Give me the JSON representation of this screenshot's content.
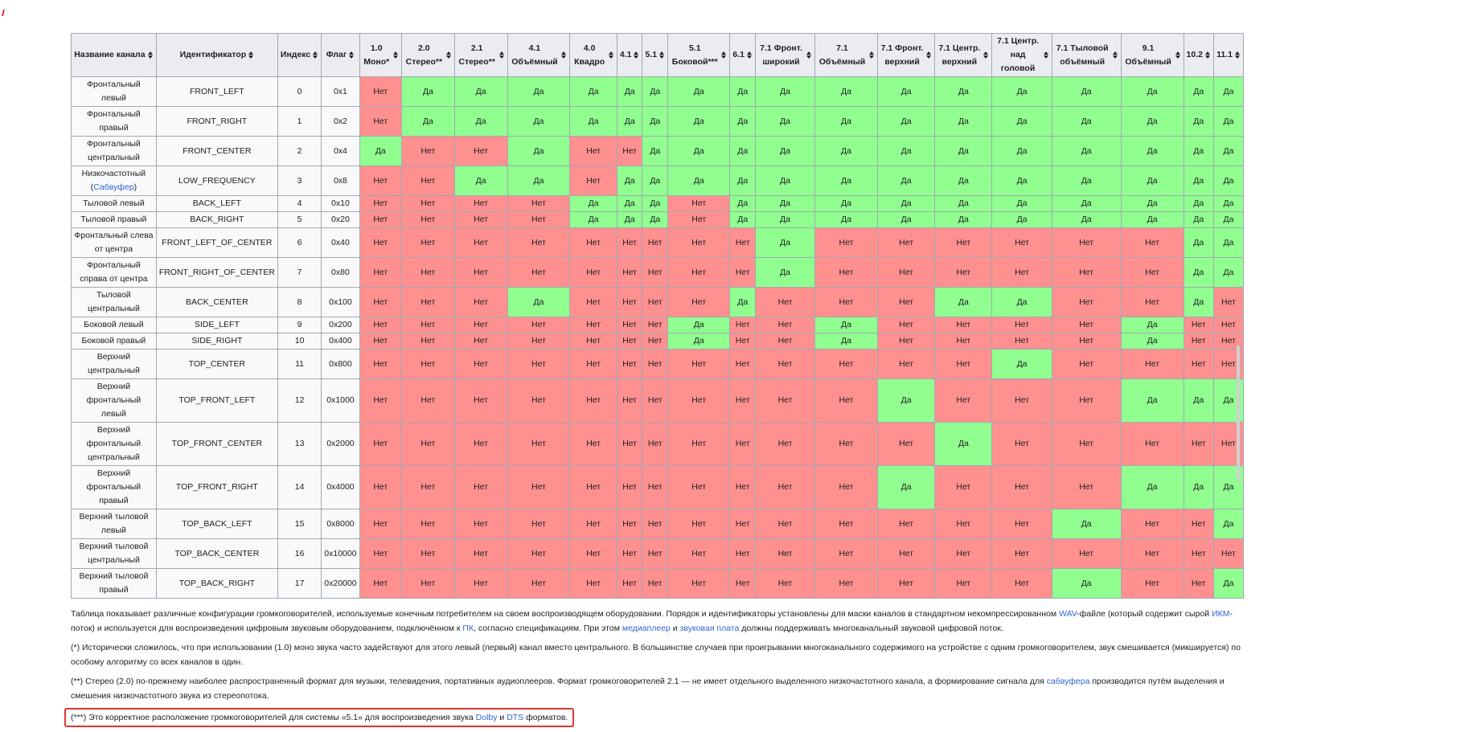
{
  "colors": {
    "yes": "#90ff90",
    "no": "#ff9090",
    "header": "#eaecf0",
    "link": "#3366cc",
    "highlight": "#e0342f"
  },
  "sort_icon": "sort-up-down-icon",
  "table": {
    "headers": [
      "Название канала",
      "Идентификатор",
      "Индекс",
      "Флаг",
      "1.0 Моно*",
      "2.0 Стерео**",
      "2.1 Стерео**",
      "4.1 Объёмный",
      "4.0 Квадро",
      "4.1",
      "5.1",
      "5.1 Боковой***",
      "6.1",
      "7.1 Фронт. широкий",
      "7.1 Объёмный",
      "7.1 Фронт. верхний",
      "7.1 Центр. верхний",
      "7.1 Центр. над головой",
      "7.1 Тыловой объёмный",
      "9.1 Объёмный",
      "10.2",
      "11.1"
    ],
    "rows": [
      {
        "name": "Фронтальный левый",
        "id": "FRONT_LEFT",
        "index": "0",
        "flag": "0x1",
        "values": [
          "Нет",
          "Да",
          "Да",
          "Да",
          "Да",
          "Да",
          "Да",
          "Да",
          "Да",
          "Да",
          "Да",
          "Да",
          "Да",
          "Да",
          "Да",
          "Да",
          "Да",
          "Да"
        ]
      },
      {
        "name": "Фронтальный правый",
        "id": "FRONT_RIGHT",
        "index": "1",
        "flag": "0x2",
        "values": [
          "Нет",
          "Да",
          "Да",
          "Да",
          "Да",
          "Да",
          "Да",
          "Да",
          "Да",
          "Да",
          "Да",
          "Да",
          "Да",
          "Да",
          "Да",
          "Да",
          "Да",
          "Да"
        ]
      },
      {
        "name": "Фронтальный центральный",
        "id": "FRONT_CENTER",
        "index": "2",
        "flag": "0x4",
        "values": [
          "Да",
          "Нет",
          "Нет",
          "Да",
          "Нет",
          "Нет",
          "Да",
          "Да",
          "Да",
          "Да",
          "Да",
          "Да",
          "Да",
          "Да",
          "Да",
          "Да",
          "Да",
          "Да"
        ]
      },
      {
        "name": "Низкочастотный",
        "name_link": "Сабвуфер",
        "id": "LOW_FREQUENCY",
        "index": "3",
        "flag": "0x8",
        "values": [
          "Нет",
          "Нет",
          "Да",
          "Да",
          "Нет",
          "Да",
          "Да",
          "Да",
          "Да",
          "Да",
          "Да",
          "Да",
          "Да",
          "Да",
          "Да",
          "Да",
          "Да",
          "Да"
        ]
      },
      {
        "name": "Тыловой левый",
        "id": "BACK_LEFT",
        "index": "4",
        "flag": "0x10",
        "values": [
          "Нет",
          "Нет",
          "Нет",
          "Нет",
          "Да",
          "Да",
          "Да",
          "Нет",
          "Да",
          "Да",
          "Да",
          "Да",
          "Да",
          "Да",
          "Да",
          "Да",
          "Да",
          "Да"
        ]
      },
      {
        "name": "Тыловой правый",
        "id": "BACK_RIGHT",
        "index": "5",
        "flag": "0x20",
        "values": [
          "Нет",
          "Нет",
          "Нет",
          "Нет",
          "Да",
          "Да",
          "Да",
          "Нет",
          "Да",
          "Да",
          "Да",
          "Да",
          "Да",
          "Да",
          "Да",
          "Да",
          "Да",
          "Да"
        ]
      },
      {
        "name": "Фронтальный слева от центра",
        "id": "FRONT_LEFT_OF_CENTER",
        "index": "6",
        "flag": "0x40",
        "values": [
          "Нет",
          "Нет",
          "Нет",
          "Нет",
          "Нет",
          "Нет",
          "Нет",
          "Нет",
          "Нет",
          "Да",
          "Нет",
          "Нет",
          "Нет",
          "Нет",
          "Нет",
          "Нет",
          "Да",
          "Да"
        ]
      },
      {
        "name": "Фронтальный справа от центра",
        "id": "FRONT_RIGHT_OF_CENTER",
        "index": "7",
        "flag": "0x80",
        "values": [
          "Нет",
          "Нет",
          "Нет",
          "Нет",
          "Нет",
          "Нет",
          "Нет",
          "Нет",
          "Нет",
          "Да",
          "Нет",
          "Нет",
          "Нет",
          "Нет",
          "Нет",
          "Нет",
          "Да",
          "Да"
        ]
      },
      {
        "name": "Тыловой центральный",
        "id": "BACK_CENTER",
        "index": "8",
        "flag": "0x100",
        "values": [
          "Нет",
          "Нет",
          "Нет",
          "Да",
          "Нет",
          "Нет",
          "Нет",
          "Нет",
          "Да",
          "Нет",
          "Нет",
          "Нет",
          "Да",
          "Да",
          "Нет",
          "Нет",
          "Да",
          "Нет"
        ]
      },
      {
        "name": "Боковой левый",
        "id": "SIDE_LEFT",
        "index": "9",
        "flag": "0x200",
        "values": [
          "Нет",
          "Нет",
          "Нет",
          "Нет",
          "Нет",
          "Нет",
          "Нет",
          "Да",
          "Нет",
          "Нет",
          "Да",
          "Нет",
          "Нет",
          "Нет",
          "Нет",
          "Да",
          "Нет",
          "Нет"
        ]
      },
      {
        "name": "Боковой правый",
        "id": "SIDE_RIGHT",
        "index": "10",
        "flag": "0x400",
        "values": [
          "Нет",
          "Нет",
          "Нет",
          "Нет",
          "Нет",
          "Нет",
          "Нет",
          "Да",
          "Нет",
          "Нет",
          "Да",
          "Нет",
          "Нет",
          "Нет",
          "Нет",
          "Да",
          "Нет",
          "Нет"
        ]
      },
      {
        "name": "Верхний центральный",
        "id": "TOP_CENTER",
        "index": "11",
        "flag": "0x800",
        "values": [
          "Нет",
          "Нет",
          "Нет",
          "Нет",
          "Нет",
          "Нет",
          "Нет",
          "Нет",
          "Нет",
          "Нет",
          "Нет",
          "Нет",
          "Нет",
          "Да",
          "Нет",
          "Нет",
          "Нет",
          "Нет"
        ]
      },
      {
        "name": "Верхний фронтальный левый",
        "id": "TOP_FRONT_LEFT",
        "index": "12",
        "flag": "0x1000",
        "values": [
          "Нет",
          "Нет",
          "Нет",
          "Нет",
          "Нет",
          "Нет",
          "Нет",
          "Нет",
          "Нет",
          "Нет",
          "Нет",
          "Да",
          "Нет",
          "Нет",
          "Нет",
          "Да",
          "Да",
          "Да"
        ]
      },
      {
        "name": "Верхний фронтальный центральный",
        "id": "TOP_FRONT_CENTER",
        "index": "13",
        "flag": "0x2000",
        "values": [
          "Нет",
          "Нет",
          "Нет",
          "Нет",
          "Нет",
          "Нет",
          "Нет",
          "Нет",
          "Нет",
          "Нет",
          "Нет",
          "Нет",
          "Да",
          "Нет",
          "Нет",
          "Нет",
          "Нет",
          "Нет"
        ]
      },
      {
        "name": "Верхний фронтальный правый",
        "id": "TOP_FRONT_RIGHT",
        "index": "14",
        "flag": "0x4000",
        "values": [
          "Нет",
          "Нет",
          "Нет",
          "Нет",
          "Нет",
          "Нет",
          "Нет",
          "Нет",
          "Нет",
          "Нет",
          "Нет",
          "Да",
          "Нет",
          "Нет",
          "Нет",
          "Да",
          "Да",
          "Да"
        ]
      },
      {
        "name": "Верхний тыловой левый",
        "id": "TOP_BACK_LEFT",
        "index": "15",
        "flag": "0x8000",
        "values": [
          "Нет",
          "Нет",
          "Нет",
          "Нет",
          "Нет",
          "Нет",
          "Нет",
          "Нет",
          "Нет",
          "Нет",
          "Нет",
          "Нет",
          "Нет",
          "Нет",
          "Да",
          "Нет",
          "Нет",
          "Да"
        ]
      },
      {
        "name": "Верхний тыловой центральный",
        "id": "TOP_BACK_CENTER",
        "index": "16",
        "flag": "0x10000",
        "values": [
          "Нет",
          "Нет",
          "Нет",
          "Нет",
          "Нет",
          "Нет",
          "Нет",
          "Нет",
          "Нет",
          "Нет",
          "Нет",
          "Нет",
          "Нет",
          "Нет",
          "Нет",
          "Нет",
          "Нет",
          "Нет"
        ]
      },
      {
        "name": "Верхний тыловой правый",
        "id": "TOP_BACK_RIGHT",
        "index": "17",
        "flag": "0x20000",
        "values": [
          "Нет",
          "Нет",
          "Нет",
          "Нет",
          "Нет",
          "Нет",
          "Нет",
          "Нет",
          "Нет",
          "Нет",
          "Нет",
          "Нет",
          "Нет",
          "Нет",
          "Да",
          "Нет",
          "Нет",
          "Да"
        ]
      }
    ]
  },
  "notes": [
    [
      {
        "t": "Таблица показывает различные конфигурации громкоговорителей, используемые конечным потребителем на своем воспроизводящем оборудовании. Порядок и идентификаторы установлены для маски каналов в стандартном некомпрессированном "
      },
      {
        "t": "WAV",
        "link": true
      },
      {
        "t": "-файле (который содержит сырой "
      },
      {
        "t": "ИКМ",
        "link": true
      },
      {
        "t": "-поток) и используется для воспроизведения цифровым звуковым оборудованием, подключённом к "
      },
      {
        "t": "ПК",
        "link": true
      },
      {
        "t": ", согласно спецификациям. При этом "
      },
      {
        "t": "медиаплеер",
        "link": true
      },
      {
        "t": " и "
      },
      {
        "t": "звуковая плата",
        "link": true
      },
      {
        "t": " должны поддерживать многоканальный звуковой цифровой поток."
      }
    ],
    [
      {
        "t": "(*) Исторически сложилось, что при использовании (1.0) моно звука часто задействуют для этого левый (первый) канал вместо центрального. В большинстве случаев при проигрывании многоканального содержимого на устройстве с одним громкоговорителем, звук смешивается (микшируется) по особому алгоритму со всех каналов в один."
      }
    ],
    [
      {
        "t": "(**) Стерео (2.0) по-прежнему наиболее распространенный формат для музыки, телевидения, портативных аудиоплееров. Формат громкоговорителей 2.1 — не имеет отдельного выделенного низкочастотного канала, а формирование сигнала для "
      },
      {
        "t": "сабвуфера",
        "link": true
      },
      {
        "t": " производится путём выделения и смешения низкочастотного звука из стереопотока."
      }
    ],
    [
      {
        "t": "(***) Это корректное расположение громкоговорителей для системы «5.1» для воспроизведения звука "
      },
      {
        "t": "Dolby",
        "link": true
      },
      {
        "t": " и "
      },
      {
        "t": "DTS",
        "link": true
      },
      {
        "t": " форматов."
      }
    ]
  ]
}
